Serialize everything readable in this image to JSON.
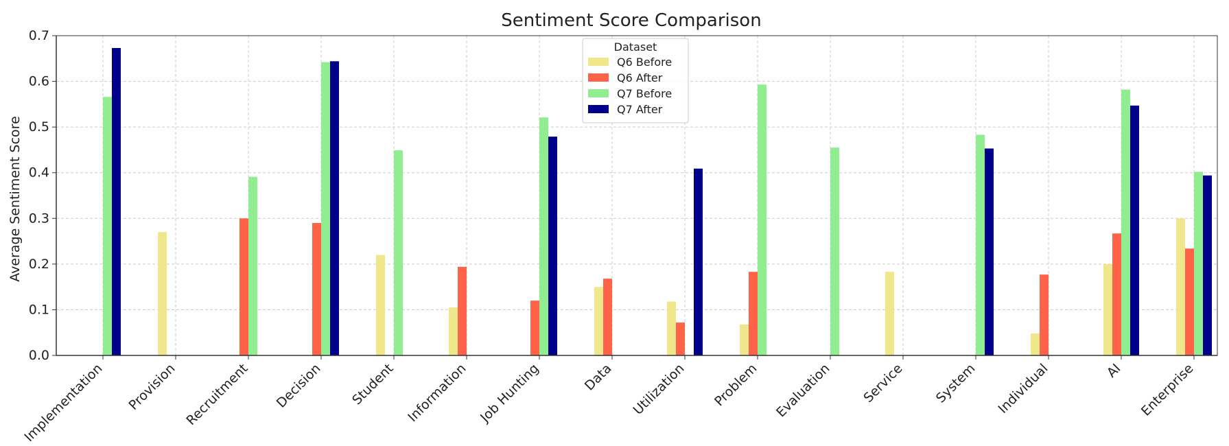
{
  "chart_data": {
    "type": "bar",
    "title": "Sentiment Score Comparison",
    "xlabel": "",
    "ylabel": "Average Sentiment Score",
    "ylim": [
      0,
      0.7
    ],
    "yticks": [
      "0.0",
      "0.1",
      "0.2",
      "0.3",
      "0.4",
      "0.5",
      "0.6",
      "0.7"
    ],
    "grid": true,
    "legend_title": "Dataset",
    "legend_position": "top-center",
    "categories": [
      "Implementation",
      "Provision",
      "Recruitment",
      "Decision",
      "Student",
      "Information",
      "Job Hunting",
      "Data",
      "Utilization",
      "Problem",
      "Evaluation",
      "Service",
      "System",
      "Individual",
      "AI",
      "Enterprise"
    ],
    "series": [
      {
        "name": "Q6 Before",
        "color": "#f0e68c",
        "values": [
          null,
          0.27,
          null,
          null,
          0.22,
          0.105,
          null,
          0.15,
          0.118,
          0.068,
          null,
          0.183,
          null,
          0.048,
          0.2,
          0.3
        ]
      },
      {
        "name": "Q6 After",
        "color": "#ff6347",
        "values": [
          null,
          null,
          0.3,
          0.29,
          null,
          0.194,
          0.12,
          0.168,
          0.072,
          0.183,
          null,
          null,
          null,
          0.177,
          0.267,
          0.234
        ]
      },
      {
        "name": "Q7 Before",
        "color": "#90ee90",
        "values": [
          0.566,
          null,
          0.391,
          0.642,
          0.449,
          null,
          0.521,
          null,
          null,
          0.593,
          0.455,
          null,
          0.483,
          null,
          0.582,
          0.402
        ]
      },
      {
        "name": "Q7 After",
        "color": "#00008b",
        "values": [
          0.673,
          null,
          null,
          0.644,
          null,
          null,
          0.479,
          null,
          0.409,
          null,
          null,
          null,
          0.453,
          null,
          0.547,
          0.394
        ]
      }
    ]
  }
}
